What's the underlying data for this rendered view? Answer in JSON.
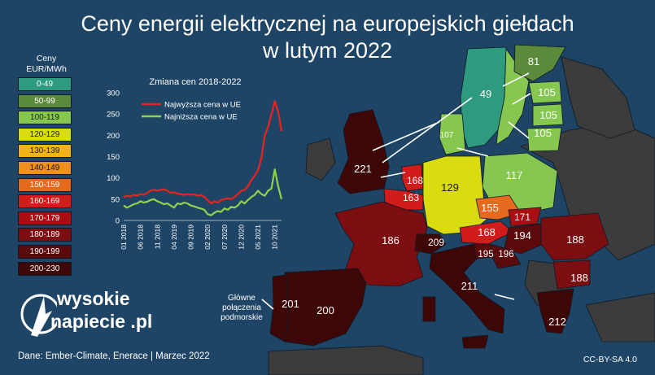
{
  "title": {
    "line1": "Ceny energii elektrycznej na europejskich giełdach",
    "line2": "w lutym 2022"
  },
  "legend": {
    "header_line1": "Ceny",
    "header_line2": "EUR/MWh",
    "items": [
      {
        "label": "0-49",
        "color": "#2e9a7e"
      },
      {
        "label": "50-99",
        "color": "#5b8a3a"
      },
      {
        "label": "100-119",
        "color": "#86c84f"
      },
      {
        "label": "120-129",
        "color": "#d9dc0e"
      },
      {
        "label": "130-139",
        "color": "#f2b415"
      },
      {
        "label": "140-149",
        "color": "#ef8f1c"
      },
      {
        "label": "150-159",
        "color": "#e66a1d"
      },
      {
        "label": "160-169",
        "color": "#d21b1b"
      },
      {
        "label": "170-179",
        "color": "#a90e12"
      },
      {
        "label": "180-189",
        "color": "#7c0d10"
      },
      {
        "label": "190-199",
        "color": "#5b0a0c"
      },
      {
        "label": "200-230",
        "color": "#3e0707"
      }
    ]
  },
  "chart_data": {
    "type": "line",
    "title": "Zmiana cen 2018-2022",
    "xlabel": "",
    "ylabel": "",
    "ylim": [
      0,
      300
    ],
    "y_ticks": [
      0,
      50,
      100,
      150,
      200,
      250,
      300
    ],
    "x_tick_labels": [
      "01 2018",
      "06 2018",
      "11 2018",
      "04 2019",
      "09 2019",
      "02 2020",
      "07 2020",
      "12 2020",
      "05 2021",
      "10 2021"
    ],
    "x_tick_index": [
      0,
      5,
      10,
      15,
      20,
      25,
      30,
      35,
      40,
      45
    ],
    "legend_position": "top-left",
    "series": [
      {
        "name": "Najwyższa cena w UE",
        "color": "#e8241d",
        "values": [
          55,
          58,
          56,
          60,
          58,
          62,
          60,
          65,
          70,
          72,
          70,
          72,
          73,
          70,
          65,
          66,
          63,
          62,
          60,
          62,
          60,
          62,
          58,
          60,
          55,
          48,
          40,
          45,
          42,
          48,
          50,
          52,
          50,
          55,
          62,
          70,
          72,
          80,
          95,
          105,
          118,
          145,
          200,
          220,
          250,
          280,
          255,
          210
        ]
      },
      {
        "name": "Najniższa cena w UE",
        "color": "#8bd44b",
        "values": [
          35,
          30,
          34,
          38,
          40,
          45,
          42,
          44,
          48,
          50,
          45,
          42,
          38,
          40,
          35,
          30,
          40,
          38,
          42,
          40,
          35,
          33,
          30,
          28,
          25,
          15,
          12,
          18,
          22,
          20,
          28,
          25,
          32,
          30,
          35,
          45,
          40,
          48,
          55,
          60,
          70,
          62,
          58,
          70,
          75,
          120,
          80,
          50
        ]
      }
    ]
  },
  "map": {
    "prices": {
      "NO": "49",
      "FI": "81",
      "EE": "105",
      "LV": "105",
      "LT": "105",
      "PL": "117",
      "DE": "129",
      "DK": "107",
      "SE": "",
      "NL": "168",
      "BE": "163",
      "GB": "221",
      "FR": "186",
      "CH": "209",
      "CZ": "155",
      "SK": "171",
      "AT": "168",
      "HU": "194",
      "SI": "195",
      "HR": "196",
      "RO": "188",
      "BG": "188",
      "IT": "211",
      "PT": "201",
      "ES": "200",
      "GR": "212"
    }
  },
  "subsea_label": {
    "line1": "Główne",
    "line2": "połączenia",
    "line3": "podmorskie"
  },
  "logo": {
    "line1": "wysokie",
    "line2": "napiecie .pl"
  },
  "footer": {
    "source": "Dane: Ember-Climate, Enerace |  Marzec 2022",
    "license": "CC-BY-SA 4.0"
  }
}
